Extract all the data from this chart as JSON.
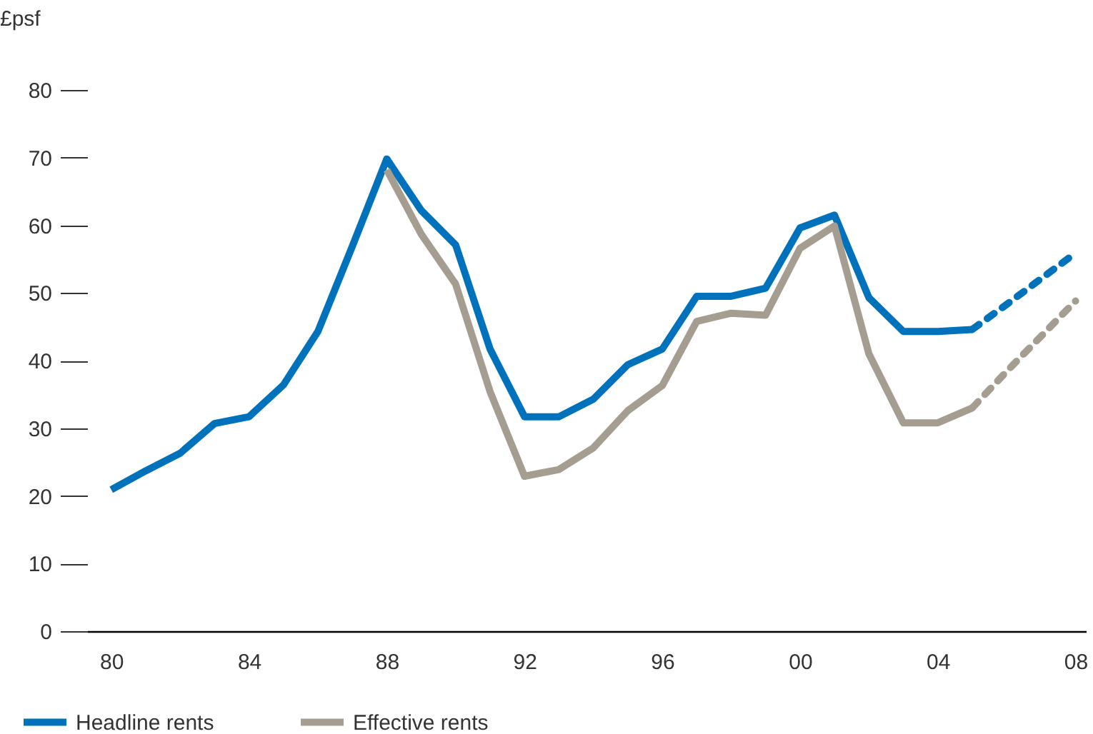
{
  "chart_data": {
    "type": "line",
    "ylabel": "£psf",
    "x": [
      1980,
      1981,
      1982,
      1983,
      1984,
      1985,
      1986,
      1987,
      1988,
      1989,
      1990,
      1991,
      1992,
      1993,
      1994,
      1995,
      1996,
      1997,
      1998,
      1999,
      2000,
      2001,
      2002,
      2003,
      2004,
      2005
    ],
    "series": [
      {
        "name": "Headline rents",
        "color": "#0072bb",
        "values": [
          20.9,
          23.7,
          26.3,
          30.7,
          31.7,
          36.4,
          44.3,
          56.9,
          69.8,
          62.2,
          57.1,
          41.7,
          31.7,
          31.7,
          34.3,
          39.4,
          41.7,
          49.5,
          49.5,
          50.7,
          59.6,
          61.5,
          49.3,
          44.3,
          44.3,
          44.6
        ]
      },
      {
        "name": "Effective rents",
        "color": "#a59d8f",
        "values": [
          null,
          null,
          null,
          null,
          null,
          null,
          null,
          null,
          68.2,
          58.7,
          51.3,
          35.4,
          22.9,
          23.9,
          27.1,
          32.6,
          36.3,
          45.8,
          47.0,
          46.7,
          56.6,
          59.9,
          41.0,
          30.8,
          30.8,
          33.0
        ]
      },
      {
        "color": "#0072bb",
        "line_style": "dashed",
        "x": [
          2005,
          2006,
          2007,
          2008
        ],
        "values": [
          44.6,
          48.3,
          52.1,
          55.9
        ]
      },
      {
        "color": "#a59d8f",
        "line_style": "dashed",
        "x": [
          2005,
          2006,
          2007,
          2008
        ],
        "values": [
          33.0,
          38.4,
          43.6,
          48.8
        ]
      }
    ],
    "xlim": [
      1979.3,
      2008.3
    ],
    "xticks": [
      {
        "value": 1980,
        "label": "80"
      },
      {
        "value": 1984,
        "label": "84"
      },
      {
        "value": 1988,
        "label": "88"
      },
      {
        "value": 1992,
        "label": "92"
      },
      {
        "value": 1996,
        "label": "96"
      },
      {
        "value": 2000,
        "label": "00"
      },
      {
        "value": 2004,
        "label": "04"
      },
      {
        "value": 2008,
        "label": "08"
      }
    ],
    "ylim": [
      0,
      80
    ],
    "yticks": [
      0,
      10,
      20,
      30,
      40,
      50,
      60,
      70,
      80
    ],
    "legend": "bottom",
    "grid": false,
    "marker": "none",
    "line_style": "solid"
  }
}
